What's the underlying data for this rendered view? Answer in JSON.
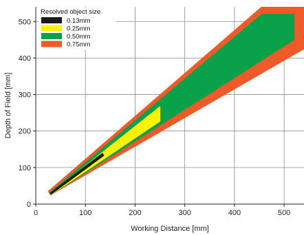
{
  "chart_data": {
    "type": "area",
    "xlabel": "Working Distance [mm]",
    "ylabel": "Depth of Field [mm]",
    "xlim": [
      0,
      540
    ],
    "ylim": [
      0,
      540
    ],
    "xticks": [
      "0",
      "100",
      "200",
      "300",
      "400",
      "500"
    ],
    "yticks": [
      "0",
      "100",
      "200",
      "300",
      "400",
      "500"
    ],
    "grid": true,
    "legend": {
      "title": "Resolved object size",
      "placement": "top-left",
      "items": [
        "0.13mm",
        "0.25mm",
        "0.50mm",
        "0.75mm"
      ]
    },
    "series": [
      {
        "name": "0.75mm",
        "color": "#f05a28",
        "polygon": [
          [
            25,
            35
          ],
          [
            455,
            540
          ],
          [
            540,
            540
          ],
          [
            540,
            425
          ],
          [
            30,
            25
          ]
        ]
      },
      {
        "name": "0.50mm",
        "color": "#0aa14b",
        "polygon": [
          [
            28,
            31
          ],
          [
            455,
            520
          ],
          [
            520,
            520
          ],
          [
            520,
            450
          ],
          [
            32,
            27
          ]
        ]
      },
      {
        "name": "0.25mm",
        "color": "#fff200",
        "polygon": [
          [
            30,
            29
          ],
          [
            250,
            267
          ],
          [
            250,
            227
          ],
          [
            32,
            27
          ]
        ]
      },
      {
        "name": "0.13mm",
        "color": "#1a1a1a",
        "polygon": [
          [
            29,
            30
          ],
          [
            134,
            139
          ],
          [
            137,
            133
          ],
          [
            31,
            27
          ]
        ]
      }
    ]
  }
}
